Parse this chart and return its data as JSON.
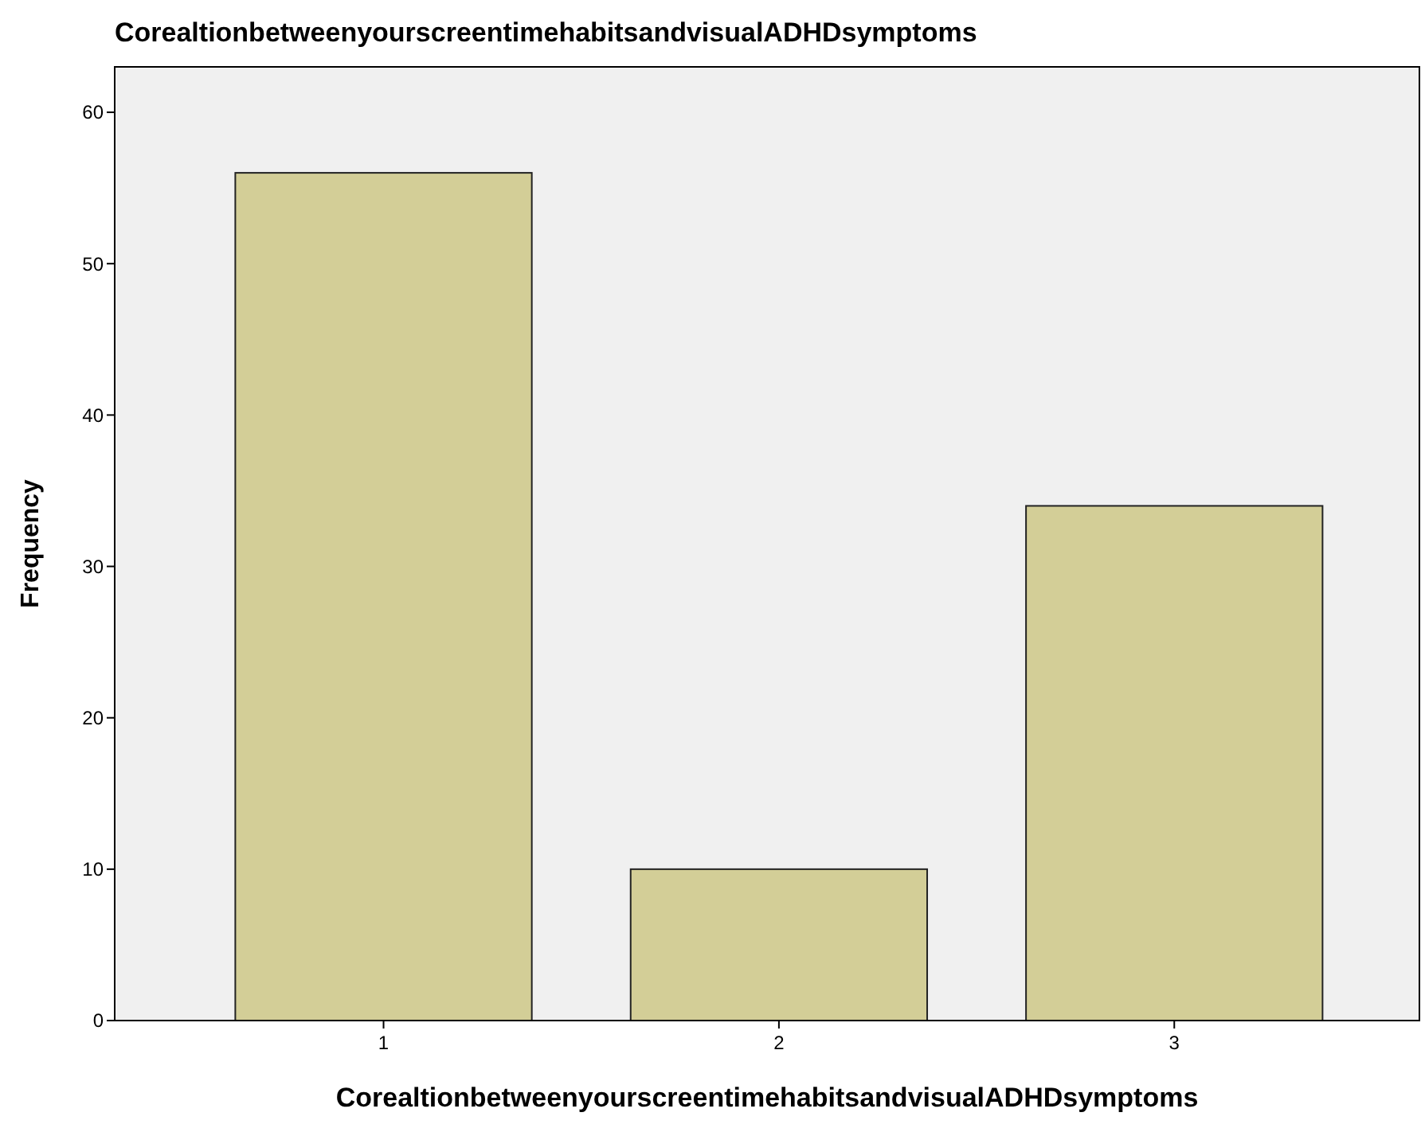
{
  "chart_data": {
    "type": "bar",
    "title": "CorealtionbetweenyourscreentimehabitsandvisualADHDsymptoms",
    "xlabel": "CorealtionbetweenyourscreentimehabitsandvisualADHDsymptoms",
    "ylabel": "Frequency",
    "categories": [
      "1",
      "2",
      "3"
    ],
    "values": [
      56,
      10,
      34
    ],
    "color": "#d3ce97",
    "ylim": [
      0,
      63
    ],
    "yticks": [
      0,
      10,
      20,
      30,
      40,
      50,
      60
    ],
    "grid": false
  }
}
